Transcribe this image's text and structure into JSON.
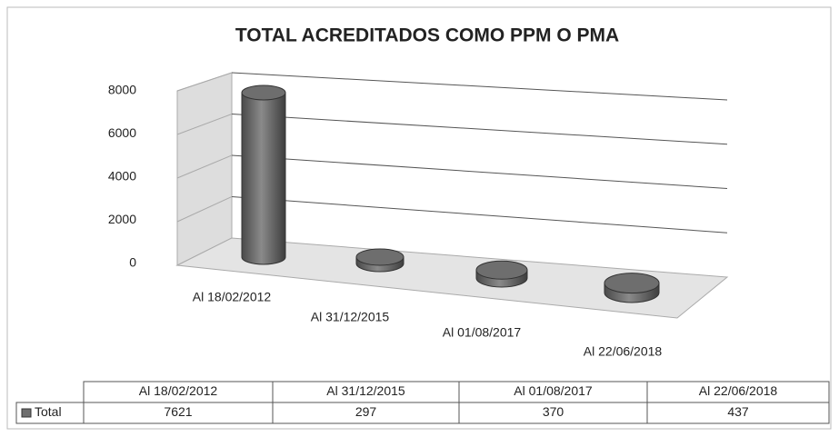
{
  "chart_data": {
    "type": "bar3d",
    "title": "TOTAL ACREDITADOS COMO PPM O PMA",
    "categories": [
      "Al 18/02/2012",
      "Al 31/12/2015",
      "Al 01/08/2017",
      "Al 22/06/2018"
    ],
    "series": [
      {
        "name": "Total",
        "color": "#6e6e6e",
        "values": [
          7621,
          297,
          370,
          437
        ]
      }
    ],
    "ylim": [
      0,
      8000
    ],
    "yticks": [
      0,
      2000,
      4000,
      6000,
      8000
    ],
    "grid": true,
    "legend": "bottom"
  }
}
